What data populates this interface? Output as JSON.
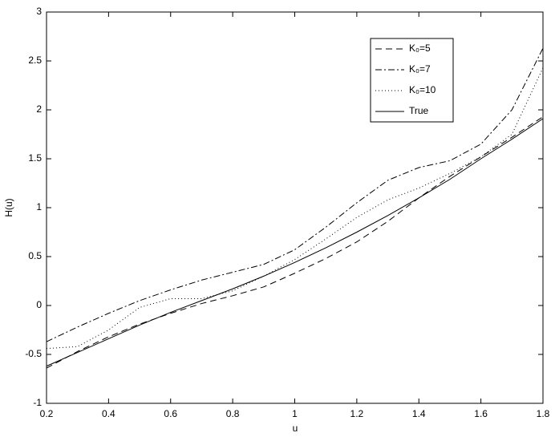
{
  "chart_data": {
    "type": "line",
    "x_label": "u",
    "y_label": "H(u)",
    "x": [
      0.2,
      0.3,
      0.4,
      0.5,
      0.6,
      0.7,
      0.8,
      0.9,
      1.0,
      1.1,
      1.2,
      1.3,
      1.4,
      1.5,
      1.6,
      1.7,
      1.8
    ],
    "series": [
      {
        "name": "K₀=5",
        "color": "#000000",
        "dash": "8,5",
        "values": [
          -0.64,
          -0.47,
          -0.32,
          -0.19,
          -0.08,
          0.02,
          0.1,
          0.19,
          0.33,
          0.48,
          0.65,
          0.86,
          1.1,
          1.32,
          1.52,
          1.72,
          1.93
        ]
      },
      {
        "name": "K₀=7",
        "color": "#000000",
        "dash": "8,3,2,3",
        "values": [
          -0.37,
          -0.22,
          -0.08,
          0.05,
          0.16,
          0.26,
          0.34,
          0.42,
          0.57,
          0.8,
          1.05,
          1.28,
          1.41,
          1.48,
          1.65,
          2.0,
          2.63
        ]
      },
      {
        "name": "K₀=10",
        "color": "#000000",
        "dash": "1,3",
        "values": [
          -0.44,
          -0.42,
          -0.25,
          -0.02,
          0.07,
          0.07,
          0.15,
          0.3,
          0.47,
          0.68,
          0.9,
          1.08,
          1.2,
          1.35,
          1.52,
          1.75,
          2.43
        ]
      },
      {
        "name": "True",
        "color": "#000000",
        "dash": "none",
        "values": [
          -0.62,
          -0.48,
          -0.34,
          -0.2,
          -0.07,
          0.05,
          0.17,
          0.3,
          0.44,
          0.59,
          0.75,
          0.92,
          1.1,
          1.29,
          1.5,
          1.7,
          1.91
        ]
      }
    ],
    "xlim": [
      0.2,
      1.8
    ],
    "xticks": [
      0.2,
      0.4,
      0.6,
      0.8,
      1,
      1.2,
      1.4,
      1.6,
      1.8
    ],
    "ylim": [
      -1,
      3
    ],
    "yticks": [
      -1,
      -0.5,
      0,
      0.5,
      1,
      1.5,
      2,
      2.5,
      3
    ],
    "grid": false,
    "legend": "upper right"
  }
}
